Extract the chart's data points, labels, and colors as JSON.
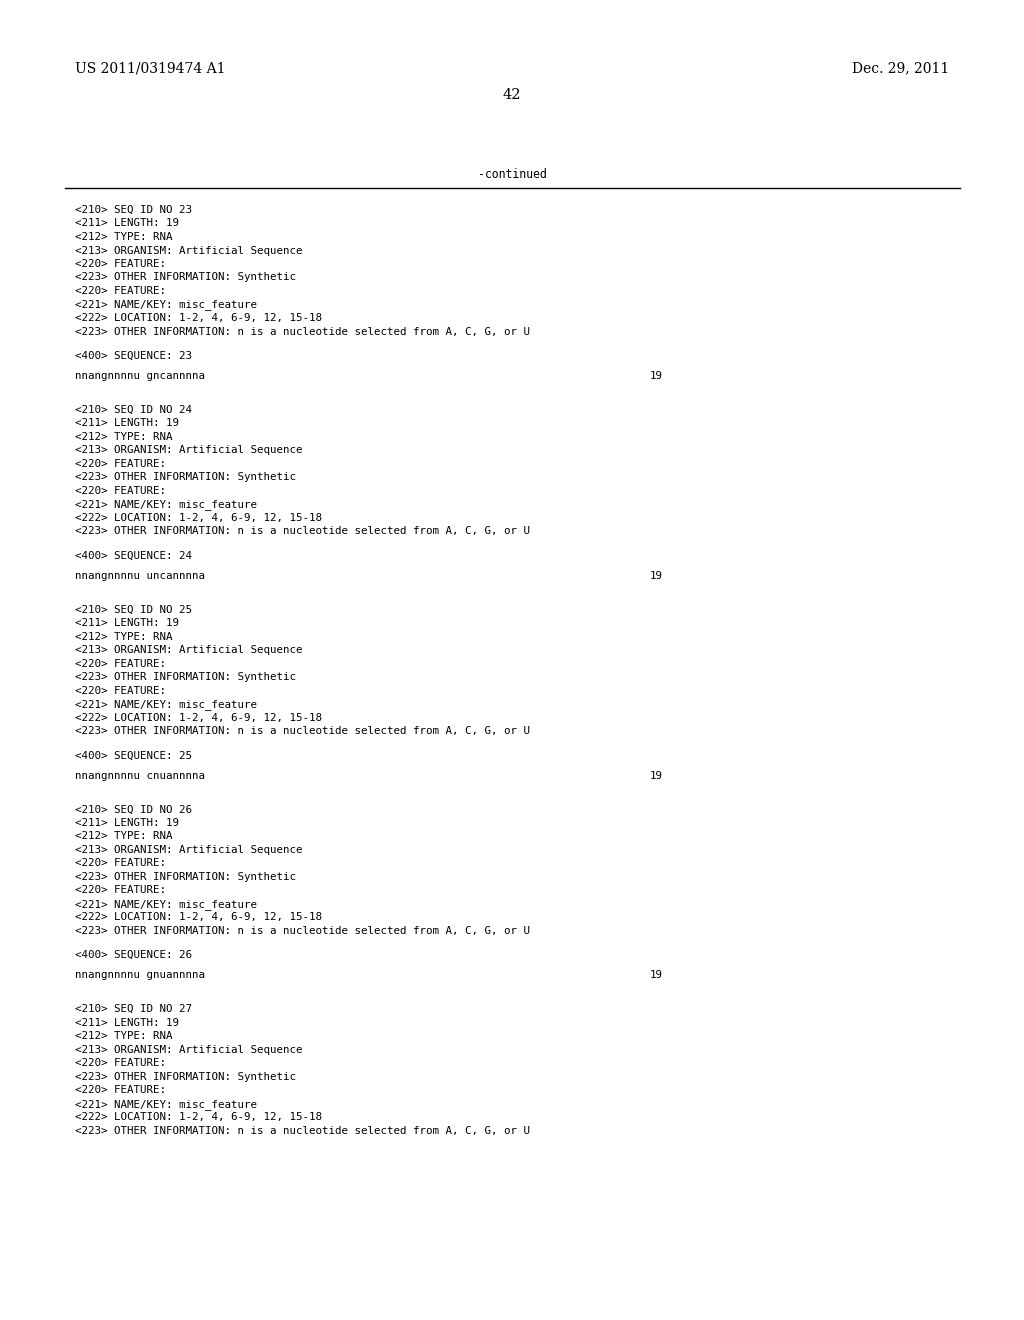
{
  "background_color": "#ffffff",
  "header_left": "US 2011/0319474 A1",
  "header_right": "Dec. 29, 2011",
  "header_center": "42",
  "continued_label": "-continued",
  "header_font_size": 10.0,
  "mono_font_size": 7.8,
  "sequences": [
    {
      "fields": [
        "<210> SEQ ID NO 23",
        "<211> LENGTH: 19",
        "<212> TYPE: RNA",
        "<213> ORGANISM: Artificial Sequence",
        "<220> FEATURE:",
        "<223> OTHER INFORMATION: Synthetic",
        "<220> FEATURE:",
        "<221> NAME/KEY: misc_feature",
        "<222> LOCATION: 1-2, 4, 6-9, 12, 15-18",
        "<223> OTHER INFORMATION: n is a nucleotide selected from A, C, G, or U"
      ],
      "seq_label": "<400> SEQUENCE: 23",
      "sequence": "nnangnnnnu gncannnna",
      "seq_number": "19"
    },
    {
      "fields": [
        "<210> SEQ ID NO 24",
        "<211> LENGTH: 19",
        "<212> TYPE: RNA",
        "<213> ORGANISM: Artificial Sequence",
        "<220> FEATURE:",
        "<223> OTHER INFORMATION: Synthetic",
        "<220> FEATURE:",
        "<221> NAME/KEY: misc_feature",
        "<222> LOCATION: 1-2, 4, 6-9, 12, 15-18",
        "<223> OTHER INFORMATION: n is a nucleotide selected from A, C, G, or U"
      ],
      "seq_label": "<400> SEQUENCE: 24",
      "sequence": "nnangnnnnu uncannnna",
      "seq_number": "19"
    },
    {
      "fields": [
        "<210> SEQ ID NO 25",
        "<211> LENGTH: 19",
        "<212> TYPE: RNA",
        "<213> ORGANISM: Artificial Sequence",
        "<220> FEATURE:",
        "<223> OTHER INFORMATION: Synthetic",
        "<220> FEATURE:",
        "<221> NAME/KEY: misc_feature",
        "<222> LOCATION: 1-2, 4, 6-9, 12, 15-18",
        "<223> OTHER INFORMATION: n is a nucleotide selected from A, C, G, or U"
      ],
      "seq_label": "<400> SEQUENCE: 25",
      "sequence": "nnangnnnnu cnuannnna",
      "seq_number": "19"
    },
    {
      "fields": [
        "<210> SEQ ID NO 26",
        "<211> LENGTH: 19",
        "<212> TYPE: RNA",
        "<213> ORGANISM: Artificial Sequence",
        "<220> FEATURE:",
        "<223> OTHER INFORMATION: Synthetic",
        "<220> FEATURE:",
        "<221> NAME/KEY: misc_feature",
        "<222> LOCATION: 1-2, 4, 6-9, 12, 15-18",
        "<223> OTHER INFORMATION: n is a nucleotide selected from A, C, G, or U"
      ],
      "seq_label": "<400> SEQUENCE: 26",
      "sequence": "nnangnnnnu gnuannnna",
      "seq_number": "19"
    },
    {
      "fields": [
        "<210> SEQ ID NO 27",
        "<211> LENGTH: 19",
        "<212> TYPE: RNA",
        "<213> ORGANISM: Artificial Sequence",
        "<220> FEATURE:",
        "<223> OTHER INFORMATION: Synthetic",
        "<220> FEATURE:",
        "<221> NAME/KEY: misc_feature",
        "<222> LOCATION: 1-2, 4, 6-9, 12, 15-18",
        "<223> OTHER INFORMATION: n is a nucleotide selected from A, C, G, or U"
      ],
      "seq_label": null,
      "sequence": null,
      "seq_number": null
    }
  ]
}
